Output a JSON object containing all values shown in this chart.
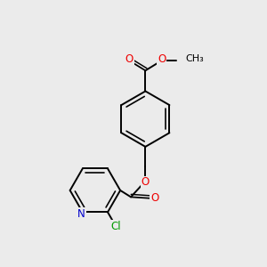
{
  "background_color": "#ebebeb",
  "bond_color": "#000000",
  "bond_width": 1.4,
  "atom_colors": {
    "O": "#ee0000",
    "N": "#0000cc",
    "Cl": "#009900",
    "C": "#000000"
  },
  "font_size_atom": 8.5,
  "font_size_methyl": 8.0
}
